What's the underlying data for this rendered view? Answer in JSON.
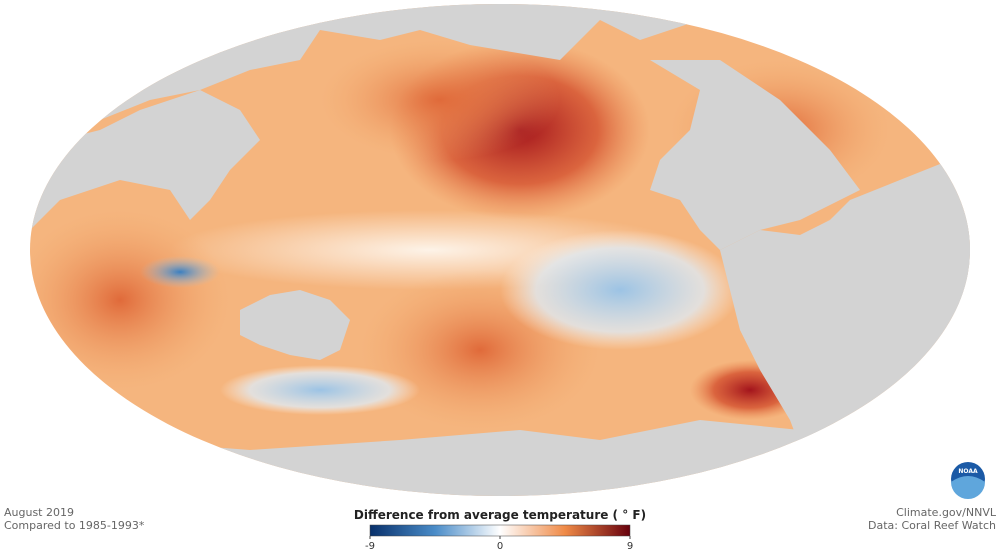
{
  "map": {
    "date": "August 2019",
    "baseline": "Compared to 1985-1993*"
  },
  "legend": {
    "title": "Difference from average temperature ( ° F)",
    "min": -9,
    "mid": 0,
    "max": 9
  },
  "credits": {
    "source": "Climate.gov/NNVL",
    "data": "Data: Coral Reef Watch"
  },
  "logo": {
    "text": "NOAA"
  }
}
